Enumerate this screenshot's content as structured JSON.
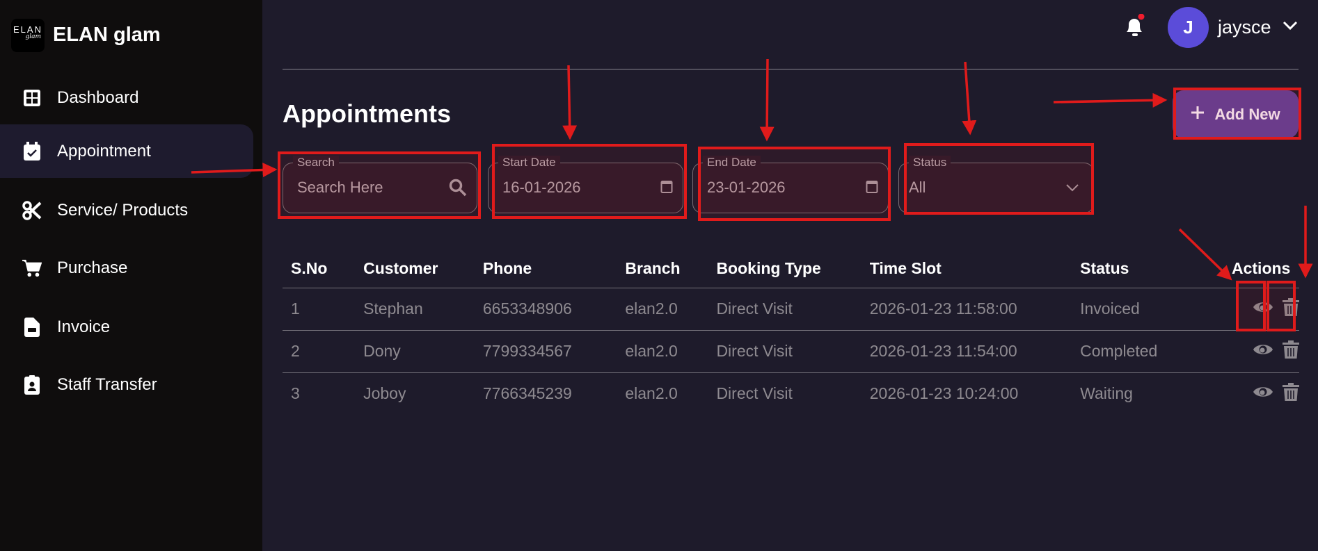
{
  "brand": {
    "logo_text": "ELAN",
    "logo_sub": "glam",
    "name": "ELAN glam"
  },
  "sidebar": {
    "items": [
      {
        "label": "Dashboard",
        "icon": "dashboard-grid-icon"
      },
      {
        "label": "Appointment",
        "icon": "calendar-check-icon",
        "active": true
      },
      {
        "label": "Service/ Products",
        "icon": "scissors-icon"
      },
      {
        "label": "Purchase",
        "icon": "cart-icon"
      },
      {
        "label": "Invoice",
        "icon": "file-invoice-icon"
      },
      {
        "label": "Staff Transfer",
        "icon": "id-badge-icon"
      }
    ]
  },
  "topbar": {
    "avatar_initial": "J",
    "username": "jaysce",
    "has_notification": true
  },
  "page": {
    "title": "Appointments",
    "add_label": "Add New"
  },
  "filters": {
    "search": {
      "label": "Search",
      "placeholder": "Search Here"
    },
    "start_date": {
      "label": "Start Date",
      "value": "16-01-2026"
    },
    "end_date": {
      "label": "End Date",
      "value": "23-01-2026"
    },
    "status": {
      "label": "Status",
      "value": "All"
    }
  },
  "table": {
    "headers": [
      "S.No",
      "Customer",
      "Phone",
      "Branch",
      "Booking Type",
      "Time Slot",
      "Status",
      "Actions"
    ],
    "rows": [
      [
        "1",
        "Stephan",
        "6653348906",
        "elan2.0",
        "Direct Visit",
        "2026-01-23 11:58:00",
        "Invoiced"
      ],
      [
        "2",
        "Dony",
        "7799334567",
        "elan2.0",
        "Direct Visit",
        "2026-01-23 11:54:00",
        "Completed"
      ],
      [
        "3",
        "Joboy",
        "7766345239",
        "elan2.0",
        "Direct Visit",
        "2026-01-23 10:24:00",
        "Waiting"
      ]
    ]
  },
  "colors": {
    "accent": "#613f95",
    "avatar": "#5b4cd9",
    "annotation": "#e01b1b"
  }
}
